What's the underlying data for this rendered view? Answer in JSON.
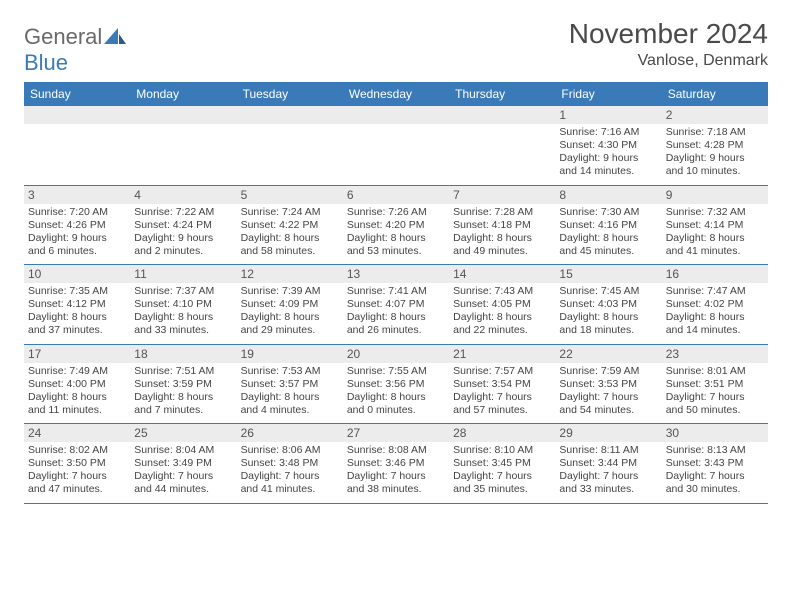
{
  "brand": {
    "part1": "General",
    "part2": "Blue"
  },
  "title": "November 2024",
  "location": "Vanlose, Denmark",
  "colors": {
    "header_bg": "#3a7ab8",
    "header_text": "#ffffff",
    "num_bg": "#ececec",
    "border": "#3a7ab8",
    "text": "#444444"
  },
  "days_of_week": [
    "Sunday",
    "Monday",
    "Tuesday",
    "Wednesday",
    "Thursday",
    "Friday",
    "Saturday"
  ],
  "weeks": [
    [
      null,
      null,
      null,
      null,
      null,
      {
        "n": "1",
        "sr": "7:16 AM",
        "ss": "4:30 PM",
        "dl": "9 hours and 14 minutes."
      },
      {
        "n": "2",
        "sr": "7:18 AM",
        "ss": "4:28 PM",
        "dl": "9 hours and 10 minutes."
      }
    ],
    [
      {
        "n": "3",
        "sr": "7:20 AM",
        "ss": "4:26 PM",
        "dl": "9 hours and 6 minutes."
      },
      {
        "n": "4",
        "sr": "7:22 AM",
        "ss": "4:24 PM",
        "dl": "9 hours and 2 minutes."
      },
      {
        "n": "5",
        "sr": "7:24 AM",
        "ss": "4:22 PM",
        "dl": "8 hours and 58 minutes."
      },
      {
        "n": "6",
        "sr": "7:26 AM",
        "ss": "4:20 PM",
        "dl": "8 hours and 53 minutes."
      },
      {
        "n": "7",
        "sr": "7:28 AM",
        "ss": "4:18 PM",
        "dl": "8 hours and 49 minutes."
      },
      {
        "n": "8",
        "sr": "7:30 AM",
        "ss": "4:16 PM",
        "dl": "8 hours and 45 minutes."
      },
      {
        "n": "9",
        "sr": "7:32 AM",
        "ss": "4:14 PM",
        "dl": "8 hours and 41 minutes."
      }
    ],
    [
      {
        "n": "10",
        "sr": "7:35 AM",
        "ss": "4:12 PM",
        "dl": "8 hours and 37 minutes."
      },
      {
        "n": "11",
        "sr": "7:37 AM",
        "ss": "4:10 PM",
        "dl": "8 hours and 33 minutes."
      },
      {
        "n": "12",
        "sr": "7:39 AM",
        "ss": "4:09 PM",
        "dl": "8 hours and 29 minutes."
      },
      {
        "n": "13",
        "sr": "7:41 AM",
        "ss": "4:07 PM",
        "dl": "8 hours and 26 minutes."
      },
      {
        "n": "14",
        "sr": "7:43 AM",
        "ss": "4:05 PM",
        "dl": "8 hours and 22 minutes."
      },
      {
        "n": "15",
        "sr": "7:45 AM",
        "ss": "4:03 PM",
        "dl": "8 hours and 18 minutes."
      },
      {
        "n": "16",
        "sr": "7:47 AM",
        "ss": "4:02 PM",
        "dl": "8 hours and 14 minutes."
      }
    ],
    [
      {
        "n": "17",
        "sr": "7:49 AM",
        "ss": "4:00 PM",
        "dl": "8 hours and 11 minutes."
      },
      {
        "n": "18",
        "sr": "7:51 AM",
        "ss": "3:59 PM",
        "dl": "8 hours and 7 minutes."
      },
      {
        "n": "19",
        "sr": "7:53 AM",
        "ss": "3:57 PM",
        "dl": "8 hours and 4 minutes."
      },
      {
        "n": "20",
        "sr": "7:55 AM",
        "ss": "3:56 PM",
        "dl": "8 hours and 0 minutes."
      },
      {
        "n": "21",
        "sr": "7:57 AM",
        "ss": "3:54 PM",
        "dl": "7 hours and 57 minutes."
      },
      {
        "n": "22",
        "sr": "7:59 AM",
        "ss": "3:53 PM",
        "dl": "7 hours and 54 minutes."
      },
      {
        "n": "23",
        "sr": "8:01 AM",
        "ss": "3:51 PM",
        "dl": "7 hours and 50 minutes."
      }
    ],
    [
      {
        "n": "24",
        "sr": "8:02 AM",
        "ss": "3:50 PM",
        "dl": "7 hours and 47 minutes."
      },
      {
        "n": "25",
        "sr": "8:04 AM",
        "ss": "3:49 PM",
        "dl": "7 hours and 44 minutes."
      },
      {
        "n": "26",
        "sr": "8:06 AM",
        "ss": "3:48 PM",
        "dl": "7 hours and 41 minutes."
      },
      {
        "n": "27",
        "sr": "8:08 AM",
        "ss": "3:46 PM",
        "dl": "7 hours and 38 minutes."
      },
      {
        "n": "28",
        "sr": "8:10 AM",
        "ss": "3:45 PM",
        "dl": "7 hours and 35 minutes."
      },
      {
        "n": "29",
        "sr": "8:11 AM",
        "ss": "3:44 PM",
        "dl": "7 hours and 33 minutes."
      },
      {
        "n": "30",
        "sr": "8:13 AM",
        "ss": "3:43 PM",
        "dl": "7 hours and 30 minutes."
      }
    ]
  ],
  "labels": {
    "sunrise": "Sunrise:",
    "sunset": "Sunset:",
    "daylight": "Daylight:"
  }
}
